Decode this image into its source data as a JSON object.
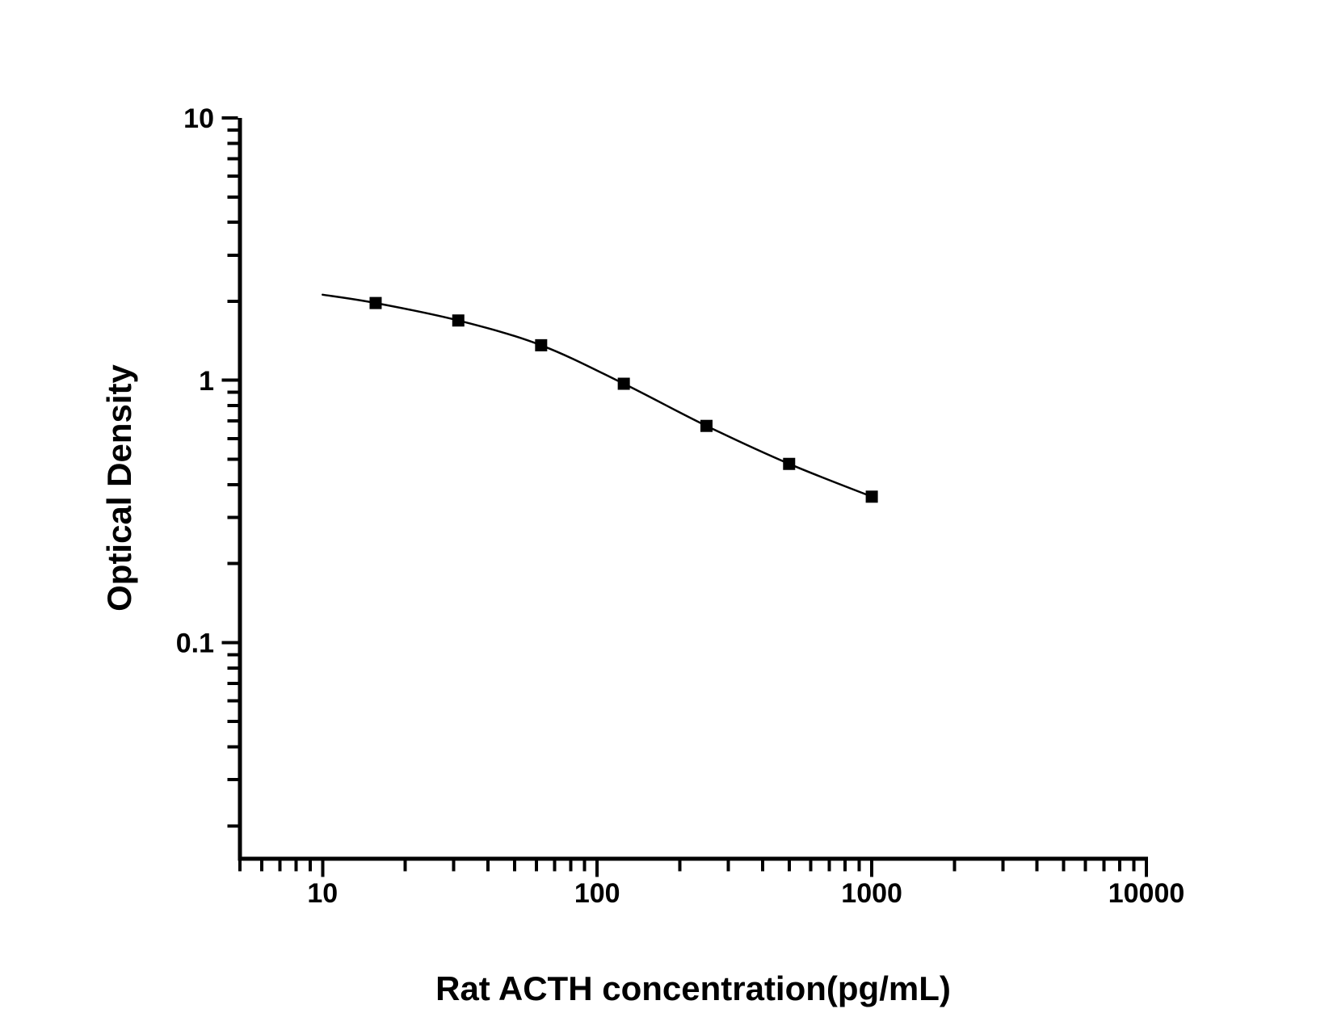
{
  "page": {
    "background_color": "#ffffff",
    "ink_color": "#000000"
  },
  "chart_data": {
    "type": "line",
    "x_scale": "log",
    "y_scale": "log",
    "title": "",
    "xlabel": "Rat ACTH concentration(pg/mL)",
    "ylabel": "Optical Density",
    "xlim": [
      5,
      10000
    ],
    "ylim": [
      0.015,
      10
    ],
    "x_ticks": [
      {
        "value": 10,
        "label": "10"
      },
      {
        "value": 100,
        "label": "100"
      },
      {
        "value": 1000,
        "label": "1000"
      },
      {
        "value": 10000,
        "label": "10000"
      }
    ],
    "y_ticks": [
      {
        "value": 10,
        "label": "10"
      },
      {
        "value": 1,
        "label": "1"
      },
      {
        "value": 0.1,
        "label": "0.1"
      }
    ],
    "grid": false,
    "legend": "none",
    "series": [
      {
        "name": "standard-curve",
        "marker": "filled-square",
        "marker_color": "#000000",
        "line_color": "#000000",
        "curve_start": {
          "x": 10,
          "y": 2.12
        },
        "points": [
          {
            "x": 15.6,
            "y": 1.97
          },
          {
            "x": 31.2,
            "y": 1.69
          },
          {
            "x": 62.5,
            "y": 1.36
          },
          {
            "x": 125,
            "y": 0.97
          },
          {
            "x": 250,
            "y": 0.67
          },
          {
            "x": 500,
            "y": 0.48
          },
          {
            "x": 1000,
            "y": 0.36
          }
        ]
      }
    ]
  }
}
